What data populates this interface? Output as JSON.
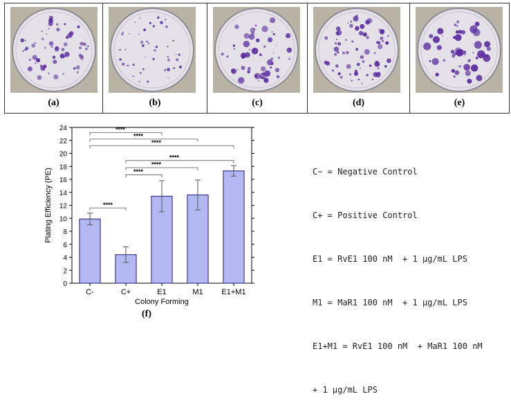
{
  "panels": [
    {
      "label": "(a)"
    },
    {
      "label": "(b)"
    },
    {
      "label": "(c)"
    },
    {
      "label": "(d)"
    },
    {
      "label": "(e)"
    }
  ],
  "figure_label": "(f)",
  "legend": [
    "C− = Negative Control",
    "C+ = Positive Control",
    "E1 = RvE1 100 nM  + 1 μg/mL LPS",
    "M1 = MaR1 100 nM  + 1 μg/mL LPS",
    "E1+M1 = RvE1 100 nM  + MaR1 100 nM",
    "+ 1 μg/mL LPS"
  ],
  "colors": {
    "bar_fill": "#b3b7f2",
    "bar_stroke": "#1c1c7a",
    "colony": "#5b2c9e"
  },
  "chart_data": {
    "type": "bar",
    "categories": [
      "C-",
      "C+",
      "E1",
      "M1",
      "E1+M1"
    ],
    "values": [
      9.9,
      4.4,
      13.4,
      13.6,
      17.3
    ],
    "errors": [
      0.9,
      1.2,
      2.4,
      2.3,
      0.8
    ],
    "ylabel": "Plating Efficiency (PE)",
    "xlabel": "Colony Forming",
    "ylim": [
      0,
      24
    ],
    "yticks": [
      0,
      2,
      4,
      6,
      8,
      10,
      12,
      14,
      16,
      18,
      20,
      22,
      24
    ],
    "grid": false,
    "significance": [
      {
        "from": "C-",
        "to": "C+",
        "label": "****"
      },
      {
        "from": "C-",
        "to": "E1",
        "label": "****"
      },
      {
        "from": "C-",
        "to": "M1",
        "label": "****"
      },
      {
        "from": "C-",
        "to": "E1+M1",
        "label": "****"
      },
      {
        "from": "C+",
        "to": "E1",
        "label": "****"
      },
      {
        "from": "C+",
        "to": "M1",
        "label": "****"
      },
      {
        "from": "C+",
        "to": "E1+M1",
        "label": "****"
      }
    ]
  }
}
